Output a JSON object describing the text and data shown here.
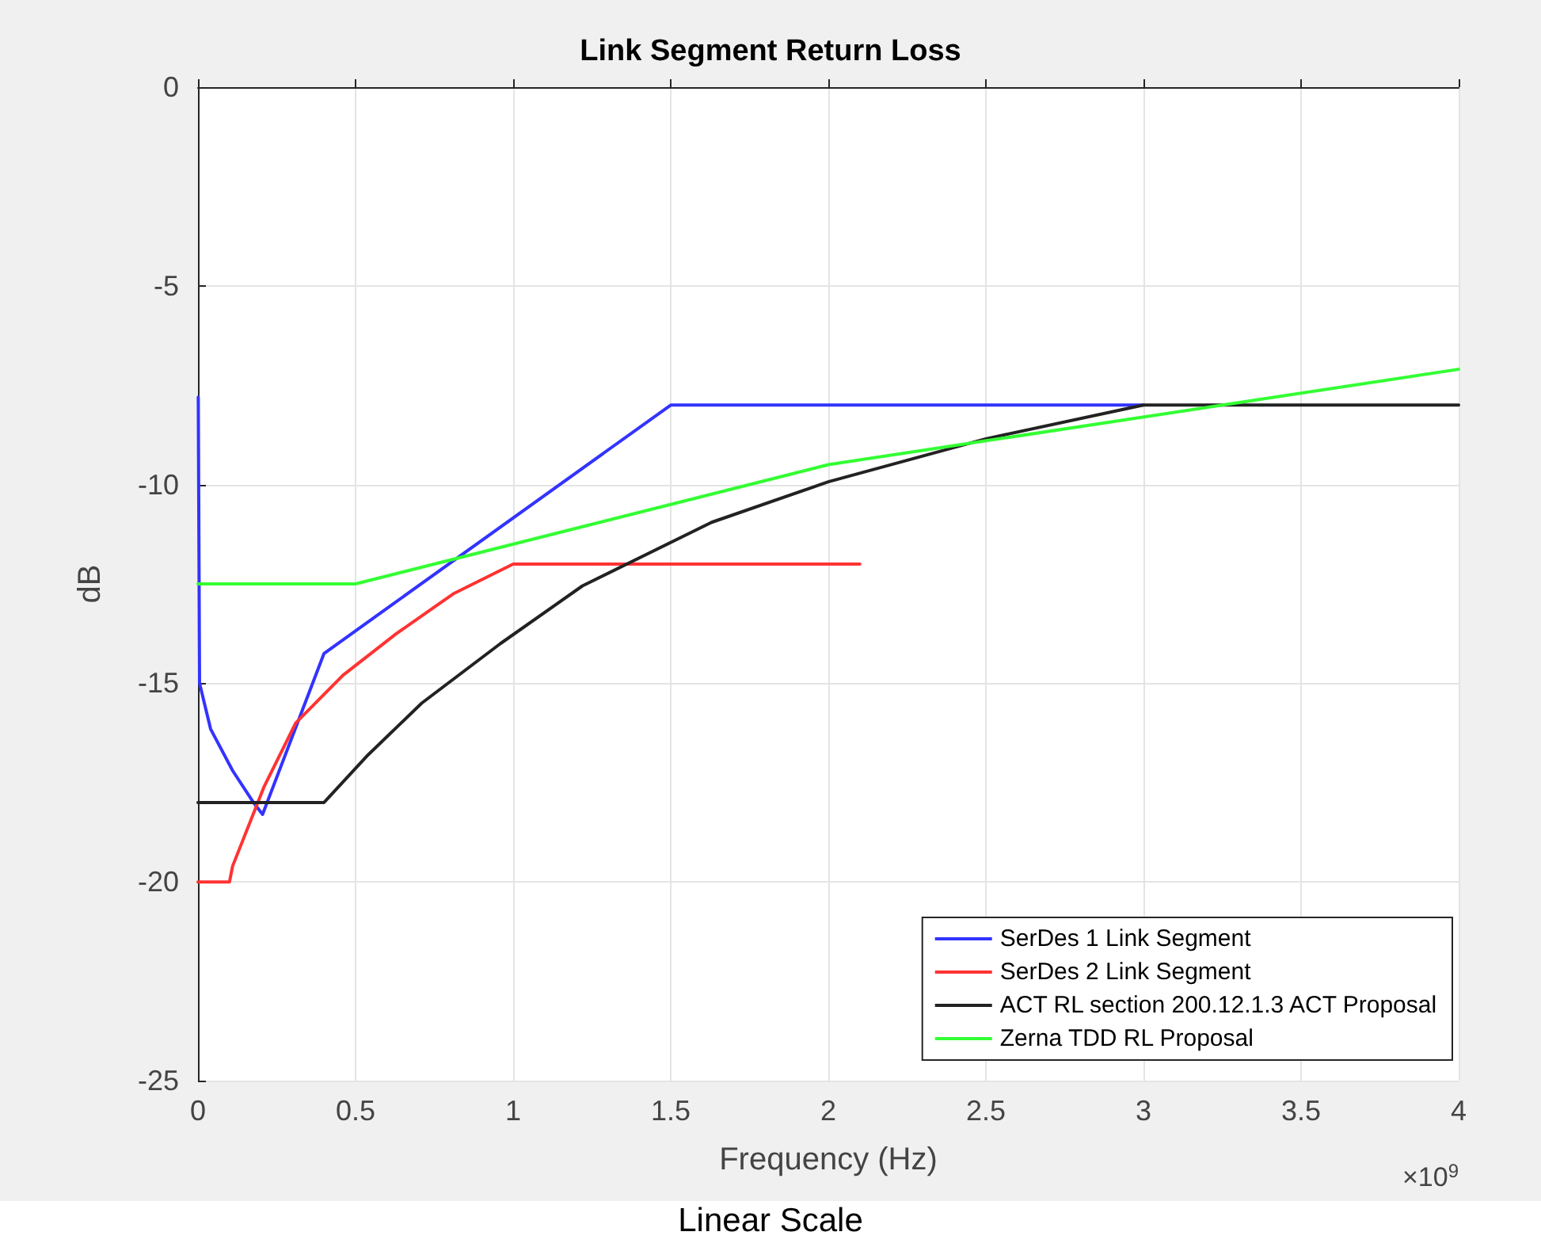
{
  "chart_data": {
    "type": "line",
    "title": "Link Segment Return Loss",
    "xlabel": "Frequency (Hz)",
    "ylabel": "dB",
    "annotations": [
      "×10$^{9}$",
      "Linear Scale"
    ],
    "xlim": [
      0,
      4
    ],
    "xticks": [
      0,
      0.5,
      1,
      1.5,
      2,
      2.5,
      3,
      3.5,
      4
    ],
    "ylim": [
      -25,
      0
    ],
    "yticks": [
      -25,
      -20,
      -15,
      -10,
      -5,
      0
    ],
    "grid": true,
    "legend": "bottom right",
    "marker": "none",
    "line_style": "solid",
    "series": [
      {
        "name": "SerDes 1 Link Segment",
        "color": "#3333ff",
        "x": [
          0.001,
          0.005,
          0.04,
          0.11,
          0.176,
          0.205,
          0.4,
          1.5,
          3
        ],
        "values": [
          -7.8,
          -15,
          -16.15,
          -17.2,
          -18,
          -18.3,
          -14.25,
          -8,
          -8
        ]
      },
      {
        "name": "SerDes 2 Link Segment",
        "color": "#ff3333",
        "x": [
          0,
          0.1,
          0.11,
          0.21,
          0.31,
          0.46,
          0.63,
          0.81,
          1,
          2.1
        ],
        "values": [
          -20,
          -20,
          -19.6,
          -17.6,
          -16,
          -14.8,
          -13.75,
          -12.75,
          -12,
          -12
        ]
      },
      {
        "name": "ACT RL section 200.12.1.3 ACT Proposal",
        "color": "#222222",
        "x": [
          0,
          0.4,
          0.54,
          0.71,
          0.96,
          1.22,
          1.63,
          2,
          2.5,
          3,
          4
        ],
        "values": [
          -18,
          -18,
          -16.8,
          -15.5,
          -14,
          -12.55,
          -10.95,
          -9.93,
          -8.85,
          -8,
          -8
        ]
      },
      {
        "name": "Zerna TDD RL Proposal",
        "color": "#33ff33",
        "x": [
          0,
          0.5,
          2,
          4
        ],
        "values": [
          -12.5,
          -12.5,
          -9.5,
          -7.1
        ]
      }
    ]
  }
}
